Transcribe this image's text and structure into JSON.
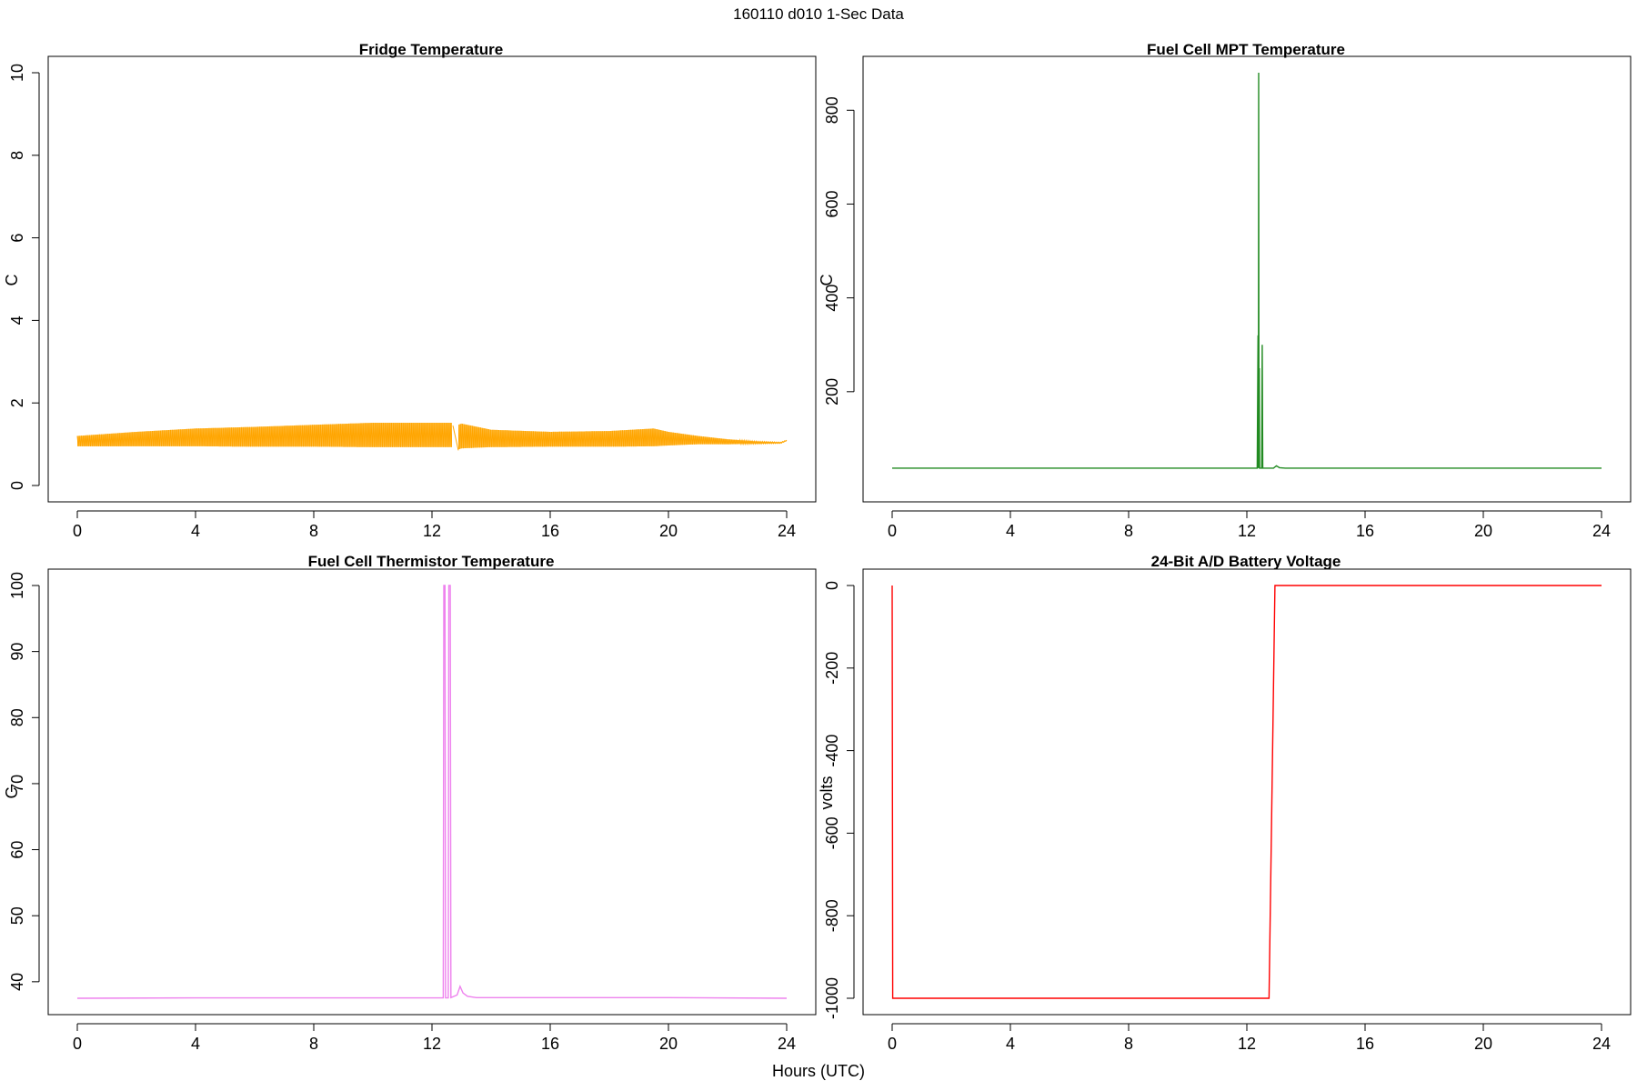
{
  "page": {
    "title": "160110   d010   1-Sec Data",
    "xlabel": "Hours (UTC)"
  },
  "chart_data": [
    {
      "type": "line",
      "title": "Fridge Temperature",
      "ylabel": "C",
      "xlabel": "Hours (UTC)",
      "color": "#FFA500",
      "xlim": [
        0,
        24
      ],
      "ylim": [
        0,
        10
      ],
      "xticks": [
        0,
        4,
        8,
        12,
        16,
        20,
        24
      ],
      "yticks": [
        0,
        2,
        4,
        6,
        8,
        10
      ],
      "envelope": {
        "x": [
          0,
          2,
          4,
          6,
          8,
          10,
          12,
          12.75,
          12.8,
          13,
          14,
          16,
          18,
          19.5,
          20,
          21,
          22,
          23,
          23.8,
          24
        ],
        "high": [
          1.2,
          1.3,
          1.38,
          1.42,
          1.47,
          1.52,
          1.52,
          1.52,
          1.45,
          1.5,
          1.35,
          1.3,
          1.32,
          1.38,
          1.3,
          1.2,
          1.12,
          1.07,
          1.05,
          1.1
        ],
        "low": [
          0.95,
          0.95,
          0.95,
          0.94,
          0.94,
          0.93,
          0.93,
          0.93,
          0.85,
          0.9,
          0.93,
          0.94,
          0.94,
          0.95,
          0.97,
          1.0,
          1.0,
          1.01,
          1.02,
          1.08
        ]
      },
      "gap_at_hour": 12.8
    },
    {
      "type": "line",
      "title": "Fuel Cell MPT Temperature",
      "ylabel": "C",
      "color": "#228B22",
      "xlim": [
        0,
        24
      ],
      "ylim": [
        0,
        880
      ],
      "xticks": [
        0,
        4,
        8,
        12,
        16,
        20,
        24
      ],
      "yticks": [
        200,
        400,
        600,
        800
      ],
      "x": [
        0,
        12.35,
        12.38,
        12.39,
        12.4,
        12.41,
        12.42,
        12.43,
        12.45,
        12.47,
        12.5,
        12.52,
        12.54,
        12.56,
        12.6,
        12.9,
        13.0,
        13.1,
        13.3,
        24
      ],
      "y": [
        37,
        37,
        320,
        37,
        880,
        37,
        250,
        37,
        37,
        37,
        37,
        300,
        37,
        37,
        37,
        37,
        42,
        38,
        37,
        37
      ]
    },
    {
      "type": "line",
      "title": "Fuel Cell Thermistor Temperature",
      "ylabel": "C",
      "color": "#EE82EE",
      "xlim": [
        0,
        24
      ],
      "ylim": [
        37.5,
        100
      ],
      "xticks": [
        0,
        4,
        8,
        12,
        16,
        20,
        24
      ],
      "yticks": [
        40,
        50,
        60,
        70,
        80,
        90,
        100
      ],
      "x": [
        0,
        4,
        8,
        12,
        12.38,
        12.4,
        12.44,
        12.46,
        12.55,
        12.57,
        12.62,
        12.64,
        12.85,
        12.95,
        13.05,
        13.2,
        13.5,
        16,
        20,
        24
      ],
      "y": [
        37.5,
        37.55,
        37.55,
        37.55,
        37.55,
        100,
        100,
        37.55,
        37.55,
        100,
        100,
        37.6,
        38.0,
        39.3,
        38.3,
        37.8,
        37.6,
        37.6,
        37.6,
        37.5
      ]
    },
    {
      "type": "line",
      "title": "24-Bit A/D Battery Voltage",
      "ylabel": "volts",
      "color": "#FF0000",
      "xlim": [
        0,
        24
      ],
      "ylim": [
        -1000,
        0
      ],
      "xticks": [
        0,
        4,
        8,
        12,
        16,
        20,
        24
      ],
      "yticks": [
        -1000,
        -800,
        -600,
        -400,
        -200,
        0
      ],
      "x": [
        0,
        0.02,
        0.05,
        12.75,
        12.95,
        24
      ],
      "y": [
        0,
        -1000,
        -1000,
        -1000,
        0,
        0
      ]
    }
  ]
}
